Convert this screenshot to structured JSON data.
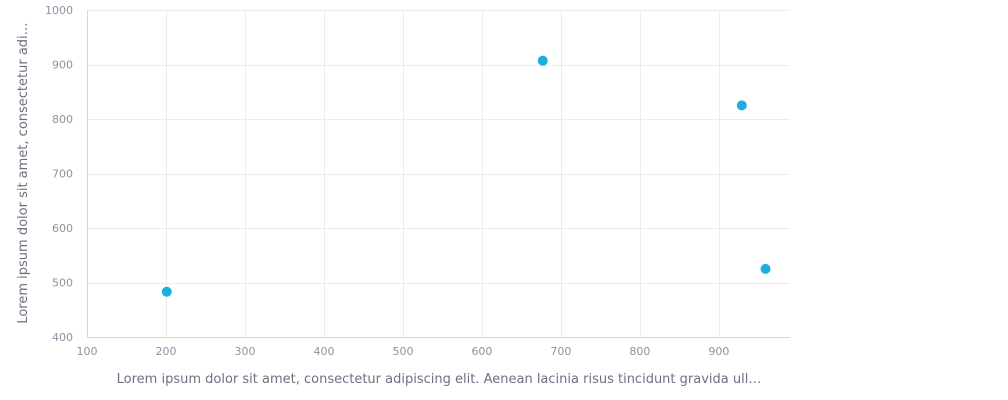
{
  "chart_data": {
    "type": "scatter",
    "title": "",
    "xlabel": "Lorem ipsum dolor sit amet, consectetur adipiscing elit. Aenean lacinia risus tincidunt gravida ull…",
    "ylabel": "Lorem ipsum dolor sit amet, consectetur adi…",
    "xlim": [
      100,
      990
    ],
    "ylim": [
      400,
      1000
    ],
    "xticks": [
      100,
      200,
      300,
      400,
      500,
      600,
      700,
      800,
      900
    ],
    "yticks": [
      400,
      500,
      600,
      700,
      800,
      900,
      1000
    ],
    "grid": true,
    "legend": "none",
    "series": [
      {
        "color": "#1aafe0",
        "points": [
          {
            "x": 201,
            "y": 483
          },
          {
            "x": 677,
            "y": 907
          },
          {
            "x": 929,
            "y": 825
          },
          {
            "x": 959,
            "y": 525
          }
        ]
      }
    ]
  }
}
